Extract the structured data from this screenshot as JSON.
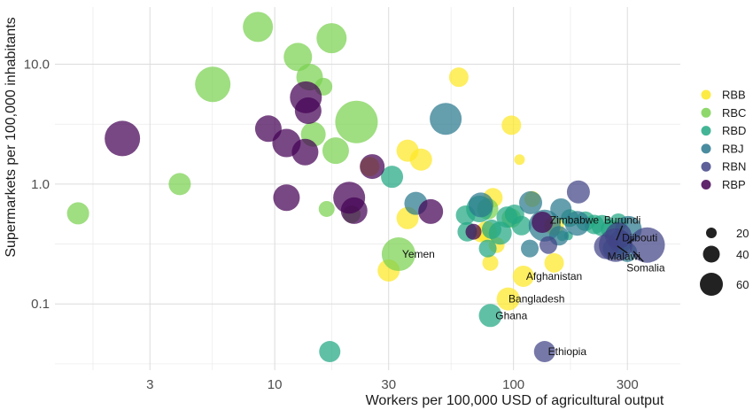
{
  "chart_data": {
    "type": "scatter",
    "title": "",
    "xlabel": "Workers per 100,000 USD of agricultural output",
    "ylabel": "Supermarkets per 100,000 inhabitants",
    "x_scale": "log10",
    "y_scale": "log10",
    "xlim": [
      1.2,
      500
    ],
    "ylim": [
      0.028,
      30
    ],
    "x_ticks": [
      3,
      10,
      30,
      100,
      300
    ],
    "x_tick_labels": [
      "3",
      "10",
      "30",
      "100",
      "300"
    ],
    "y_ticks": [
      0.1,
      1.0,
      10.0
    ],
    "y_tick_labels": [
      "0.1",
      "1.0",
      "10.0"
    ],
    "grid": true,
    "legend_position": "right",
    "series": [
      {
        "name": "RBB",
        "color": "#FDE725",
        "points": [
          {
            "x": 59,
            "y": 7.8,
            "size": 22
          },
          {
            "x": 98,
            "y": 3.1,
            "size": 22
          },
          {
            "x": 36,
            "y": 1.9,
            "size": 25
          },
          {
            "x": 41,
            "y": 1.6,
            "size": 25
          },
          {
            "x": 25,
            "y": 1.4,
            "size": 22
          },
          {
            "x": 106,
            "y": 1.6,
            "size": 12
          },
          {
            "x": 82,
            "y": 0.77,
            "size": 22
          },
          {
            "x": 120,
            "y": 0.75,
            "size": 18
          },
          {
            "x": 36,
            "y": 0.52,
            "size": 25
          },
          {
            "x": 77,
            "y": 0.4,
            "size": 24
          },
          {
            "x": 73,
            "y": 0.38,
            "size": 18
          },
          {
            "x": 148,
            "y": 0.45,
            "size": 22
          },
          {
            "x": 85,
            "y": 0.31,
            "size": 18
          },
          {
            "x": 80,
            "y": 0.22,
            "size": 18
          },
          {
            "x": 148,
            "y": 0.22,
            "size": 22
          },
          {
            "x": 30,
            "y": 0.19,
            "size": 25
          },
          {
            "x": 110,
            "y": 0.17,
            "size": 24
          },
          {
            "x": 95,
            "y": 0.11,
            "size": 26
          }
        ]
      },
      {
        "name": "RBC",
        "color": "#7AD151",
        "points": [
          {
            "x": 8.5,
            "y": 20.5,
            "size": 34
          },
          {
            "x": 17.3,
            "y": 16.5,
            "size": 34
          },
          {
            "x": 12.5,
            "y": 11.5,
            "size": 32
          },
          {
            "x": 5.5,
            "y": 6.8,
            "size": 40
          },
          {
            "x": 14,
            "y": 7.8,
            "size": 30
          },
          {
            "x": 16,
            "y": 6.5,
            "size": 20
          },
          {
            "x": 22,
            "y": 3.3,
            "size": 48
          },
          {
            "x": 14.5,
            "y": 2.6,
            "size": 28
          },
          {
            "x": 18,
            "y": 1.9,
            "size": 30
          },
          {
            "x": 4,
            "y": 1.0,
            "size": 25
          },
          {
            "x": 1.5,
            "y": 0.57,
            "size": 25
          },
          {
            "x": 16.5,
            "y": 0.62,
            "size": 18
          },
          {
            "x": 21,
            "y": 0.56,
            "size": 20
          },
          {
            "x": 33,
            "y": 0.26,
            "size": 38
          },
          {
            "x": 78,
            "y": 0.62,
            "size": 24
          },
          {
            "x": 98,
            "y": 0.52,
            "size": 22
          }
        ]
      },
      {
        "name": "RBD",
        "color": "#22A884",
        "points": [
          {
            "x": 31,
            "y": 1.15,
            "size": 25
          },
          {
            "x": 63,
            "y": 0.55,
            "size": 22
          },
          {
            "x": 72,
            "y": 0.62,
            "size": 30
          },
          {
            "x": 94,
            "y": 0.53,
            "size": 24
          },
          {
            "x": 101,
            "y": 0.56,
            "size": 22
          },
          {
            "x": 108,
            "y": 0.45,
            "size": 22
          },
          {
            "x": 81,
            "y": 0.42,
            "size": 22
          },
          {
            "x": 64,
            "y": 0.4,
            "size": 22
          },
          {
            "x": 88,
            "y": 0.39,
            "size": 26
          },
          {
            "x": 78,
            "y": 0.29,
            "size": 20
          },
          {
            "x": 17,
            "y": 0.04,
            "size": 24
          },
          {
            "x": 80,
            "y": 0.08,
            "size": 26
          },
          {
            "x": 172,
            "y": 0.52,
            "size": 20
          },
          {
            "x": 200,
            "y": 0.49,
            "size": 22
          },
          {
            "x": 218,
            "y": 0.46,
            "size": 22
          },
          {
            "x": 235,
            "y": 0.45,
            "size": 24
          },
          {
            "x": 255,
            "y": 0.42,
            "size": 22
          },
          {
            "x": 275,
            "y": 0.48,
            "size": 20
          },
          {
            "x": 160,
            "y": 0.37,
            "size": 12
          },
          {
            "x": 170,
            "y": 0.37,
            "size": 10
          }
        ]
      },
      {
        "name": "RBJ",
        "color": "#2A788E",
        "points": [
          {
            "x": 52,
            "y": 3.5,
            "size": 36
          },
          {
            "x": 39,
            "y": 0.69,
            "size": 26
          },
          {
            "x": 73,
            "y": 0.67,
            "size": 28
          },
          {
            "x": 118,
            "y": 0.7,
            "size": 26
          },
          {
            "x": 158,
            "y": 0.62,
            "size": 24
          },
          {
            "x": 135,
            "y": 0.45,
            "size": 36
          },
          {
            "x": 185,
            "y": 0.47,
            "size": 28
          },
          {
            "x": 303,
            "y": 0.42,
            "size": 30
          },
          {
            "x": 280,
            "y": 0.33,
            "size": 26
          },
          {
            "x": 262,
            "y": 0.29,
            "size": 24
          },
          {
            "x": 300,
            "y": 0.27,
            "size": 22
          },
          {
            "x": 117,
            "y": 0.29,
            "size": 20
          },
          {
            "x": 155,
            "y": 0.37,
            "size": 22
          }
        ]
      },
      {
        "name": "RBN",
        "color": "#414487",
        "points": [
          {
            "x": 187,
            "y": 0.86,
            "size": 26
          },
          {
            "x": 140,
            "y": 0.31,
            "size": 20
          },
          {
            "x": 245,
            "y": 0.3,
            "size": 28
          },
          {
            "x": 275,
            "y": 0.37,
            "size": 30
          },
          {
            "x": 268,
            "y": 0.31,
            "size": 38
          },
          {
            "x": 363,
            "y": 0.31,
            "size": 40
          },
          {
            "x": 135,
            "y": 0.04,
            "size": 24
          }
        ]
      },
      {
        "name": "RBP",
        "color": "#440154",
        "points": [
          {
            "x": 2.3,
            "y": 2.4,
            "size": 40
          },
          {
            "x": 9.4,
            "y": 2.9,
            "size": 30
          },
          {
            "x": 11.2,
            "y": 2.2,
            "size": 32
          },
          {
            "x": 13.5,
            "y": 5.3,
            "size": 36
          },
          {
            "x": 13.8,
            "y": 4.1,
            "size": 30
          },
          {
            "x": 13.4,
            "y": 1.85,
            "size": 30
          },
          {
            "x": 11.2,
            "y": 0.77,
            "size": 30
          },
          {
            "x": 20.5,
            "y": 0.77,
            "size": 36
          },
          {
            "x": 21.5,
            "y": 0.6,
            "size": 30
          },
          {
            "x": 25.6,
            "y": 1.4,
            "size": 28
          },
          {
            "x": 45,
            "y": 0.59,
            "size": 28
          },
          {
            "x": 132,
            "y": 0.48,
            "size": 24
          },
          {
            "x": 68,
            "y": 0.4,
            "size": 18
          }
        ]
      }
    ],
    "annotations": [
      {
        "text": "Zimbabwe",
        "x": 180,
        "y": 0.5
      },
      {
        "text": "Burundi",
        "x": 286,
        "y": 0.5
      },
      {
        "text": "Djibouti",
        "x": 338,
        "y": 0.355
      },
      {
        "text": "Yemen",
        "x": 40,
        "y": 0.26
      },
      {
        "text": "Malawi",
        "x": 290,
        "y": 0.25
      },
      {
        "text": "Somalia",
        "x": 358,
        "y": 0.2
      },
      {
        "text": "Afghanistan",
        "x": 148,
        "y": 0.17
      },
      {
        "text": "Bangladesh",
        "x": 125,
        "y": 0.11
      },
      {
        "text": "Ghana",
        "x": 98,
        "y": 0.08
      },
      {
        "text": "Ethiopia",
        "x": 168,
        "y": 0.04
      }
    ],
    "size_legend": {
      "values": [
        20,
        40,
        60
      ],
      "labels": [
        "20",
        "40",
        "60"
      ]
    }
  }
}
